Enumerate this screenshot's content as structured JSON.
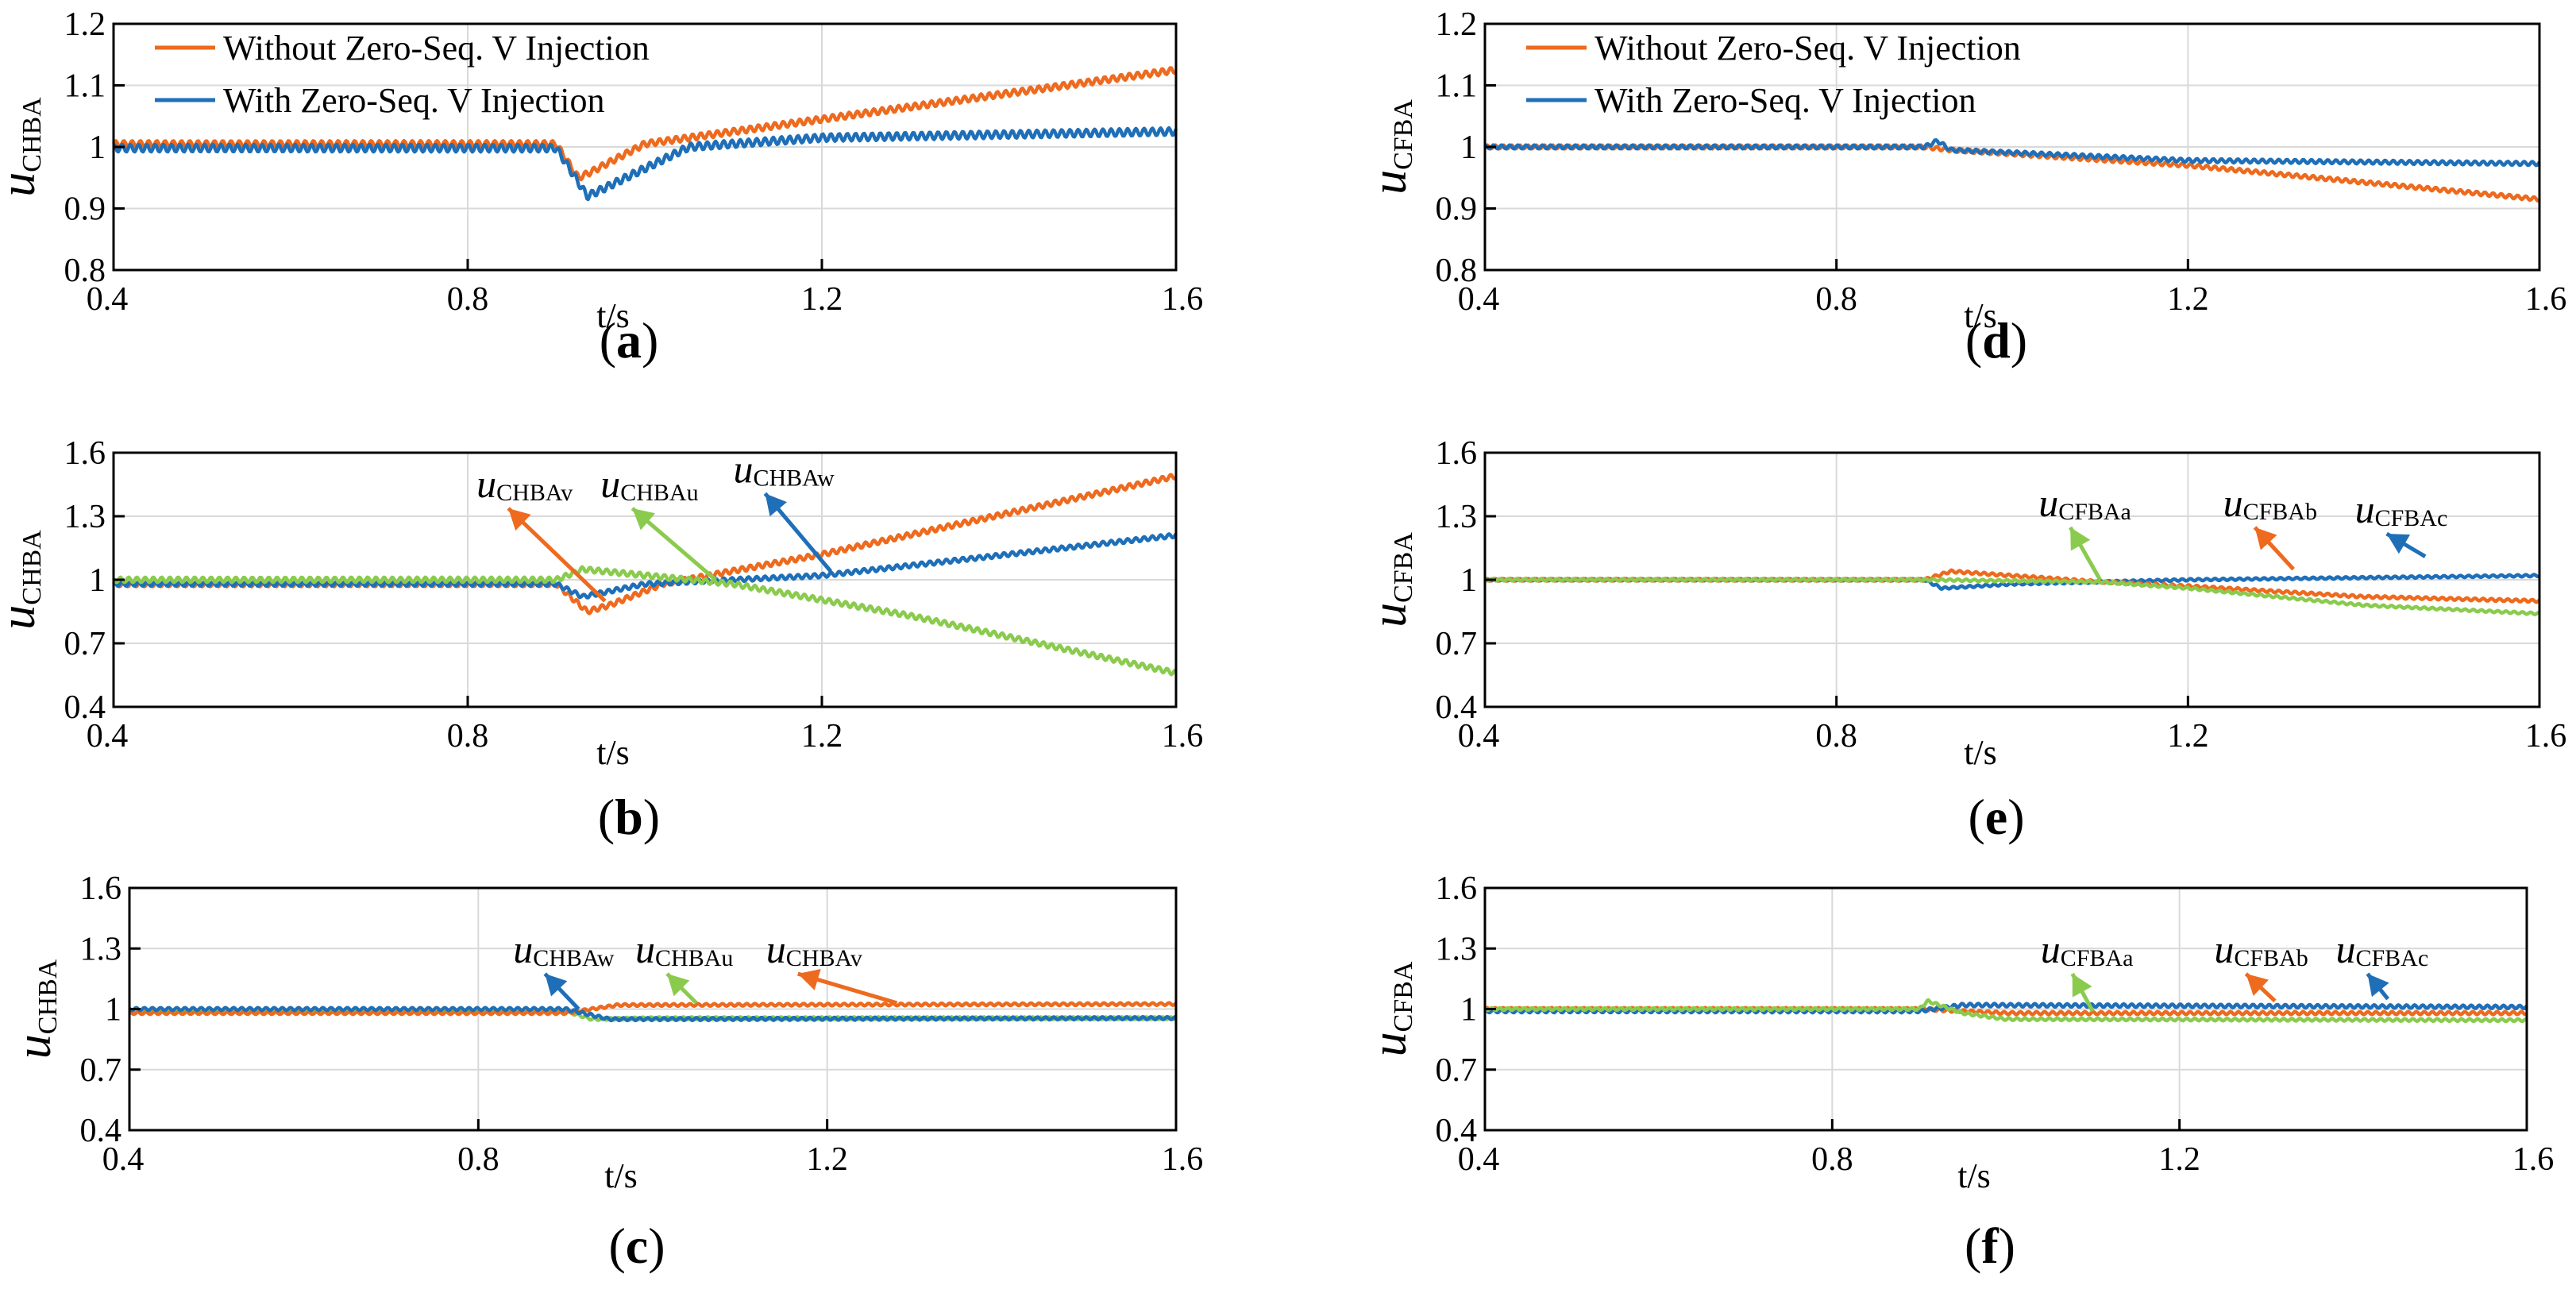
{
  "colors": {
    "orange": "#ED6A1E",
    "blue": "#1F6FB8",
    "green": "#8ACB4E",
    "grid": "#d9d9d9"
  },
  "chart_data": [
    {
      "id": "a",
      "type": "line",
      "caption": "(a)",
      "ylabel": "u",
      "ylabel_sub": "CHBA",
      "xlabel": "t/s",
      "xlim": [
        0.4,
        1.6
      ],
      "ylim": [
        0.8,
        1.2
      ],
      "xticks": [
        "0.4",
        "0.8",
        "1.2",
        "1.6"
      ],
      "yticks": [
        0.8,
        0.9,
        1,
        1.1,
        1.2
      ],
      "ytick_labels": [
        "0.8",
        "0.9",
        "1",
        "1.1",
        "1.2"
      ],
      "legend": [
        "Without Zero-Seq. V Injection",
        "With Zero-Seq. V Injection"
      ],
      "series": [
        {
          "name": "Without Zero-Seq. V Injection",
          "color": "orange",
          "ripple": 0.005,
          "points": [
            [
              0.4,
              1.005
            ],
            [
              0.9,
              1.005
            ],
            [
              0.925,
              0.95
            ],
            [
              0.94,
              0.96
            ],
            [
              1.0,
              1.005
            ],
            [
              1.2,
              1.045
            ],
            [
              1.6,
              1.125
            ]
          ]
        },
        {
          "name": "With Zero-Seq. V Injection",
          "color": "blue",
          "ripple": 0.006,
          "points": [
            [
              0.4,
              0.998
            ],
            [
              0.9,
              0.998
            ],
            [
              0.935,
              0.92
            ],
            [
              0.95,
              0.93
            ],
            [
              1.05,
              1.0
            ],
            [
              1.2,
              1.015
            ],
            [
              1.6,
              1.025
            ]
          ]
        }
      ]
    },
    {
      "id": "b",
      "type": "line",
      "caption": "(b)",
      "ylabel": "u",
      "ylabel_sub": "CHBA",
      "xlabel": "t/s",
      "xlim": [
        0.4,
        1.6
      ],
      "ylim": [
        0.4,
        1.6
      ],
      "xticks": [
        "0.4",
        "0.8",
        "1.2",
        "1.6"
      ],
      "yticks": [
        0.4,
        0.7,
        1,
        1.3,
        1.6
      ],
      "ytick_labels": [
        "0.4",
        "0.7",
        "1",
        "1.3",
        "1.6"
      ],
      "series": [
        {
          "color": "orange",
          "ripple": 0.012,
          "points": [
            [
              0.4,
              0.98
            ],
            [
              0.9,
              0.98
            ],
            [
              0.935,
              0.85
            ],
            [
              0.96,
              0.88
            ],
            [
              1.02,
              0.98
            ],
            [
              1.2,
              1.12
            ],
            [
              1.6,
              1.49
            ]
          ]
        },
        {
          "color": "blue",
          "ripple": 0.01,
          "points": [
            [
              0.4,
              0.98
            ],
            [
              0.9,
              0.98
            ],
            [
              0.93,
              0.92
            ],
            [
              1.0,
              0.98
            ],
            [
              1.2,
              1.02
            ],
            [
              1.6,
              1.21
            ]
          ]
        },
        {
          "color": "green",
          "ripple": 0.012,
          "points": [
            [
              0.4,
              1.0
            ],
            [
              0.9,
              1.0
            ],
            [
              0.93,
              1.05
            ],
            [
              1.1,
              0.98
            ],
            [
              1.3,
              0.83
            ],
            [
              1.6,
              0.56
            ]
          ]
        }
      ],
      "annotations": [
        {
          "label": "u",
          "sub": "CHBAv",
          "color": "orange",
          "tx": 0.81,
          "ty": 1.39,
          "ax": 0.955,
          "ay": 0.9
        },
        {
          "label": "u",
          "sub": "CHBAu",
          "color": "green",
          "tx": 0.95,
          "ty": 1.39,
          "ax": 1.08,
          "ay": 1.0
        },
        {
          "label": "u",
          "sub": "CHBAw",
          "color": "blue",
          "tx": 1.1,
          "ty": 1.46,
          "ax": 1.21,
          "ay": 1.04
        }
      ]
    },
    {
      "id": "c",
      "type": "line",
      "caption": "(c)",
      "ylabel": "u",
      "ylabel_sub": "CHBA",
      "xlabel": "t/s",
      "xlim": [
        0.4,
        1.6
      ],
      "ylim": [
        0.4,
        1.6
      ],
      "xticks": [
        "0.4",
        "0.8",
        "1.2",
        "1.6"
      ],
      "yticks": [
        0.4,
        0.7,
        1,
        1.3,
        1.6
      ],
      "ytick_labels": [
        "0.4",
        "0.7",
        "1",
        "1.3",
        "1.6"
      ],
      "series": [
        {
          "color": "green",
          "ripple": 0.006,
          "points": [
            [
              0.4,
              0.99
            ],
            [
              0.9,
              0.99
            ],
            [
              0.93,
              0.95
            ],
            [
              1.0,
              0.955
            ],
            [
              1.6,
              0.955
            ]
          ]
        },
        {
          "color": "orange",
          "ripple": 0.006,
          "points": [
            [
              0.4,
              0.98
            ],
            [
              0.9,
              0.98
            ],
            [
              0.96,
              1.02
            ],
            [
              1.6,
              1.025
            ]
          ]
        },
        {
          "color": "blue",
          "ripple": 0.007,
          "points": [
            [
              0.4,
              1.0
            ],
            [
              0.9,
              1.0
            ],
            [
              0.95,
              0.95
            ],
            [
              1.6,
              0.955
            ]
          ]
        }
      ],
      "annotations": [
        {
          "label": "u",
          "sub": "CHBAw",
          "color": "blue",
          "tx": 0.84,
          "ty": 1.23,
          "ax": 0.915,
          "ay": 1.0
        },
        {
          "label": "u",
          "sub": "CHBAu",
          "color": "green",
          "tx": 0.98,
          "ty": 1.23,
          "ax": 1.05,
          "ay": 1.03
        },
        {
          "label": "u",
          "sub": "CHBAv",
          "color": "orange",
          "tx": 1.13,
          "ty": 1.23,
          "ax": 1.28,
          "ay": 1.03
        }
      ]
    },
    {
      "id": "d",
      "type": "line",
      "caption": "(d)",
      "ylabel": "u",
      "ylabel_sub": "CFBA",
      "xlabel": "t/s",
      "xlim": [
        0.4,
        1.6
      ],
      "ylim": [
        0.8,
        1.2
      ],
      "xticks": [
        "0.4",
        "0.8",
        "1.2",
        "1.6"
      ],
      "yticks": [
        0.8,
        0.9,
        1,
        1.1,
        1.2
      ],
      "ytick_labels": [
        "0.8",
        "0.9",
        "1",
        "1.1",
        "1.2"
      ],
      "legend": [
        "Without Zero-Seq. V Injection",
        "With Zero-Seq. V Injection"
      ],
      "series": [
        {
          "name": "Without Zero-Seq. V Injection",
          "color": "orange",
          "ripple": 0.003,
          "points": [
            [
              0.4,
              1.0
            ],
            [
              0.9,
              1.0
            ],
            [
              0.93,
              0.995
            ],
            [
              1.2,
              0.97
            ],
            [
              1.6,
              0.915
            ]
          ]
        },
        {
          "name": "With Zero-Seq. V Injection",
          "color": "blue",
          "ripple": 0.003,
          "points": [
            [
              0.4,
              1.0
            ],
            [
              0.9,
              1.0
            ],
            [
              0.915,
              1.01
            ],
            [
              0.93,
              0.995
            ],
            [
              1.2,
              0.978
            ],
            [
              1.6,
              0.973
            ]
          ]
        }
      ]
    },
    {
      "id": "e",
      "type": "line",
      "caption": "(e)",
      "ylabel": "u",
      "ylabel_sub": "CFBA",
      "xlabel": "t/s",
      "xlim": [
        0.4,
        1.6
      ],
      "ylim": [
        0.4,
        1.6
      ],
      "xticks": [
        "0.4",
        "0.8",
        "1.2",
        "1.6"
      ],
      "yticks": [
        0.4,
        0.7,
        1,
        1.3,
        1.6
      ],
      "ytick_labels": [
        "0.4",
        "0.7",
        "1",
        "1.3",
        "1.6"
      ],
      "series": [
        {
          "color": "blue",
          "ripple": 0.005,
          "points": [
            [
              0.4,
              1.0
            ],
            [
              0.9,
              1.0
            ],
            [
              0.92,
              0.96
            ],
            [
              1.0,
              0.98
            ],
            [
              1.2,
              1.0
            ],
            [
              1.6,
              1.02
            ]
          ]
        },
        {
          "color": "orange",
          "ripple": 0.006,
          "points": [
            [
              0.4,
              1.0
            ],
            [
              0.9,
              1.0
            ],
            [
              0.93,
              1.04
            ],
            [
              1.1,
              0.99
            ],
            [
              1.2,
              0.97
            ],
            [
              1.4,
              0.92
            ],
            [
              1.6,
              0.9
            ]
          ]
        },
        {
          "color": "green",
          "ripple": 0.005,
          "points": [
            [
              0.4,
              1.0
            ],
            [
              0.9,
              1.0
            ],
            [
              1.1,
              0.99
            ],
            [
              1.2,
              0.96
            ],
            [
              1.4,
              0.88
            ],
            [
              1.6,
              0.84
            ]
          ]
        }
      ],
      "annotations": [
        {
          "label": "u",
          "sub": "CFBAa",
          "color": "green",
          "tx": 1.03,
          "ty": 1.3,
          "ax": 1.1,
          "ay": 1.0
        },
        {
          "label": "u",
          "sub": "CFBAb",
          "color": "orange",
          "tx": 1.24,
          "ty": 1.3,
          "ax": 1.32,
          "ay": 1.05
        },
        {
          "label": "u",
          "sub": "CFBAc",
          "color": "blue",
          "tx": 1.39,
          "ty": 1.27,
          "ax": 1.47,
          "ay": 1.11
        }
      ]
    },
    {
      "id": "f",
      "type": "line",
      "caption": "(f)",
      "ylabel": "u",
      "ylabel_sub": "CFBA",
      "xlabel": "t/s",
      "xlim": [
        0.4,
        1.6
      ],
      "ylim": [
        0.4,
        1.6
      ],
      "xticks": [
        "0.4",
        "0.8",
        "1.2",
        "1.6"
      ],
      "yticks": [
        0.4,
        0.7,
        1,
        1.3,
        1.6
      ],
      "ytick_labels": [
        "0.4",
        "0.7",
        "1",
        "1.3",
        "1.6"
      ],
      "series": [
        {
          "color": "orange",
          "ripple": 0.007,
          "points": [
            [
              0.4,
              1.0
            ],
            [
              0.9,
              1.0
            ],
            [
              1.0,
              0.98
            ],
            [
              1.6,
              0.98
            ]
          ]
        },
        {
          "color": "blue",
          "ripple": 0.008,
          "points": [
            [
              0.4,
              0.99
            ],
            [
              0.9,
              0.99
            ],
            [
              0.95,
              1.02
            ],
            [
              1.6,
              1.01
            ]
          ]
        },
        {
          "color": "green",
          "ripple": 0.006,
          "points": [
            [
              0.4,
              1.0
            ],
            [
              0.9,
              1.0
            ],
            [
              0.91,
              1.04
            ],
            [
              0.95,
              0.98
            ],
            [
              1.0,
              0.95
            ],
            [
              1.6,
              0.945
            ]
          ]
        }
      ],
      "annotations": [
        {
          "label": "u",
          "sub": "CFBAa",
          "color": "green",
          "tx": 1.04,
          "ty": 1.23,
          "ax": 1.1,
          "ay": 0.99
        },
        {
          "label": "u",
          "sub": "CFBAb",
          "color": "orange",
          "tx": 1.24,
          "ty": 1.23,
          "ax": 1.31,
          "ay": 1.04
        },
        {
          "label": "u",
          "sub": "CFBAc",
          "color": "blue",
          "tx": 1.38,
          "ty": 1.23,
          "ax": 1.44,
          "ay": 1.05
        }
      ]
    }
  ]
}
